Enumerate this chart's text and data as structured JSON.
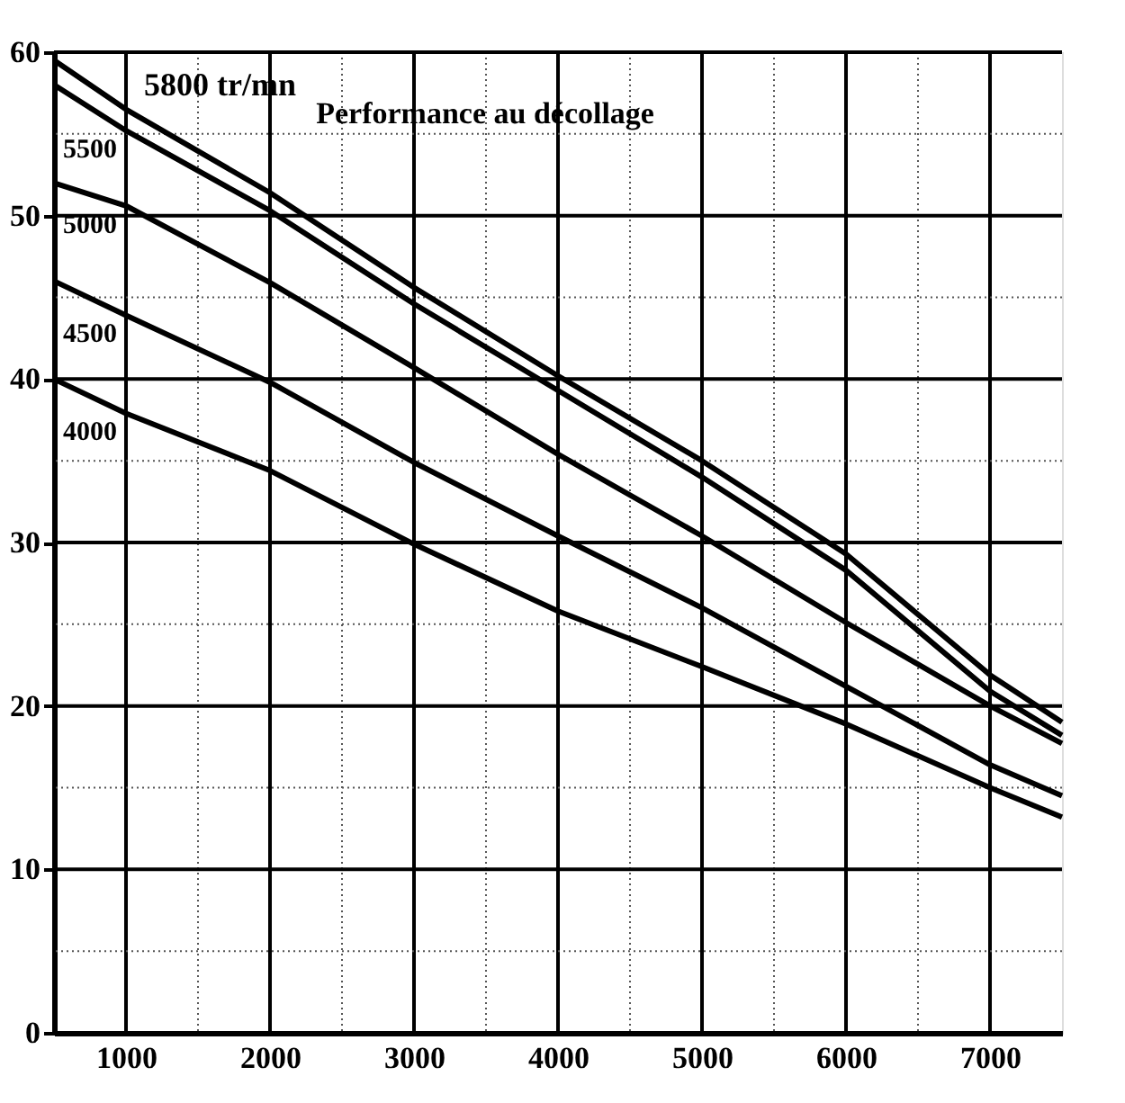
{
  "chart_data": {
    "type": "line",
    "annotations": [
      "Performance au décollage"
    ],
    "x": [
      500,
      1000,
      2000,
      3000,
      4000,
      5000,
      6000,
      7000,
      7500
    ],
    "series": [
      {
        "name": "5800 tr/mn",
        "color": "#000000",
        "values": [
          59.5,
          56.5,
          51.4,
          45.6,
          40.2,
          35,
          29.3,
          21.9,
          19
        ]
      },
      {
        "name": "5500",
        "color": "#000000",
        "values": [
          58,
          55.2,
          50.3,
          44.6,
          39.3,
          34,
          28.3,
          20.9,
          18.2
        ]
      },
      {
        "name": "5000",
        "color": "#000000",
        "values": [
          52,
          50.6,
          45.9,
          40.7,
          35.4,
          30.4,
          25.1,
          20,
          17.7
        ]
      },
      {
        "name": "4500",
        "color": "#000000",
        "values": [
          46,
          43.9,
          39.8,
          34.9,
          30.4,
          26,
          21.2,
          16.4,
          14.5
        ]
      },
      {
        "name": "4000",
        "color": "#000000",
        "values": [
          40,
          37.9,
          34.4,
          29.9,
          25.8,
          22.4,
          18.9,
          15,
          13.2
        ]
      }
    ],
    "xlim": [
      500,
      7500
    ],
    "ylim": [
      0,
      60
    ],
    "xticks": [
      1000,
      2000,
      3000,
      4000,
      5000,
      6000,
      7000
    ],
    "yticks": [
      0,
      10,
      20,
      30,
      40,
      50,
      60
    ],
    "grid": true,
    "legend": false,
    "marker": "none",
    "line_style": "solid"
  }
}
